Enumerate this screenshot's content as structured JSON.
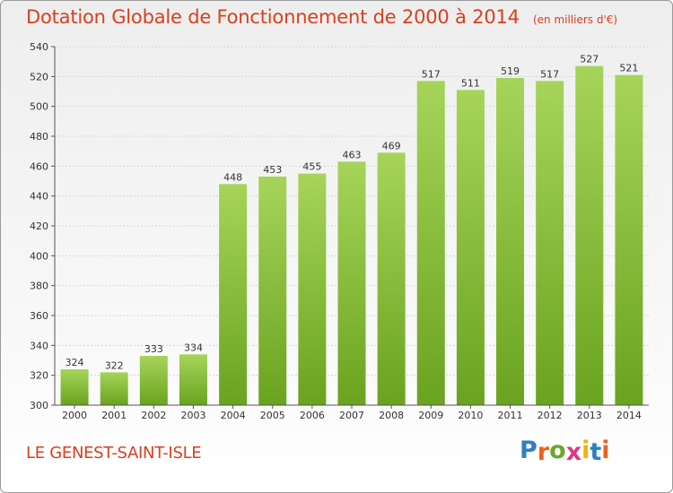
{
  "title": "Dotation Globale de Fonctionnement de 2000 à 2014",
  "unit": "(en milliers d'€)",
  "city": "LE GENEST-SAINT-ISLE",
  "brand": {
    "letters": [
      "P",
      "r",
      "o",
      "x",
      "i",
      "t",
      "i"
    ],
    "colors": [
      "#2f7fc4",
      "#e8661c",
      "#6aa72c",
      "#d93a8a",
      "#f0b400",
      "#2f7fc4",
      "#e8661c"
    ]
  },
  "colors": {
    "bar_light": "#a6d45a",
    "bar_dark": "#6aa31f",
    "text": "#d8401e",
    "grid": "#d6d6d6"
  },
  "chart_data": {
    "type": "bar",
    "categories": [
      "2000",
      "2001",
      "2002",
      "2003",
      "2004",
      "2005",
      "2006",
      "2007",
      "2008",
      "2009",
      "2010",
      "2011",
      "2012",
      "2013",
      "2014"
    ],
    "values": [
      324,
      322,
      333,
      334,
      448,
      453,
      455,
      463,
      469,
      517,
      511,
      519,
      517,
      527,
      521
    ],
    "data_labels": [
      "324",
      "322",
      "333",
      "334",
      "448",
      "453",
      "455",
      "463",
      "469",
      "517",
      "511",
      "519",
      "517",
      "527",
      "521"
    ],
    "ylim": [
      300,
      540
    ],
    "yticks": [
      "300",
      "320",
      "340",
      "360",
      "380",
      "400",
      "420",
      "440",
      "460",
      "480",
      "500",
      "520",
      "540"
    ],
    "grid": true,
    "legend": "none"
  }
}
